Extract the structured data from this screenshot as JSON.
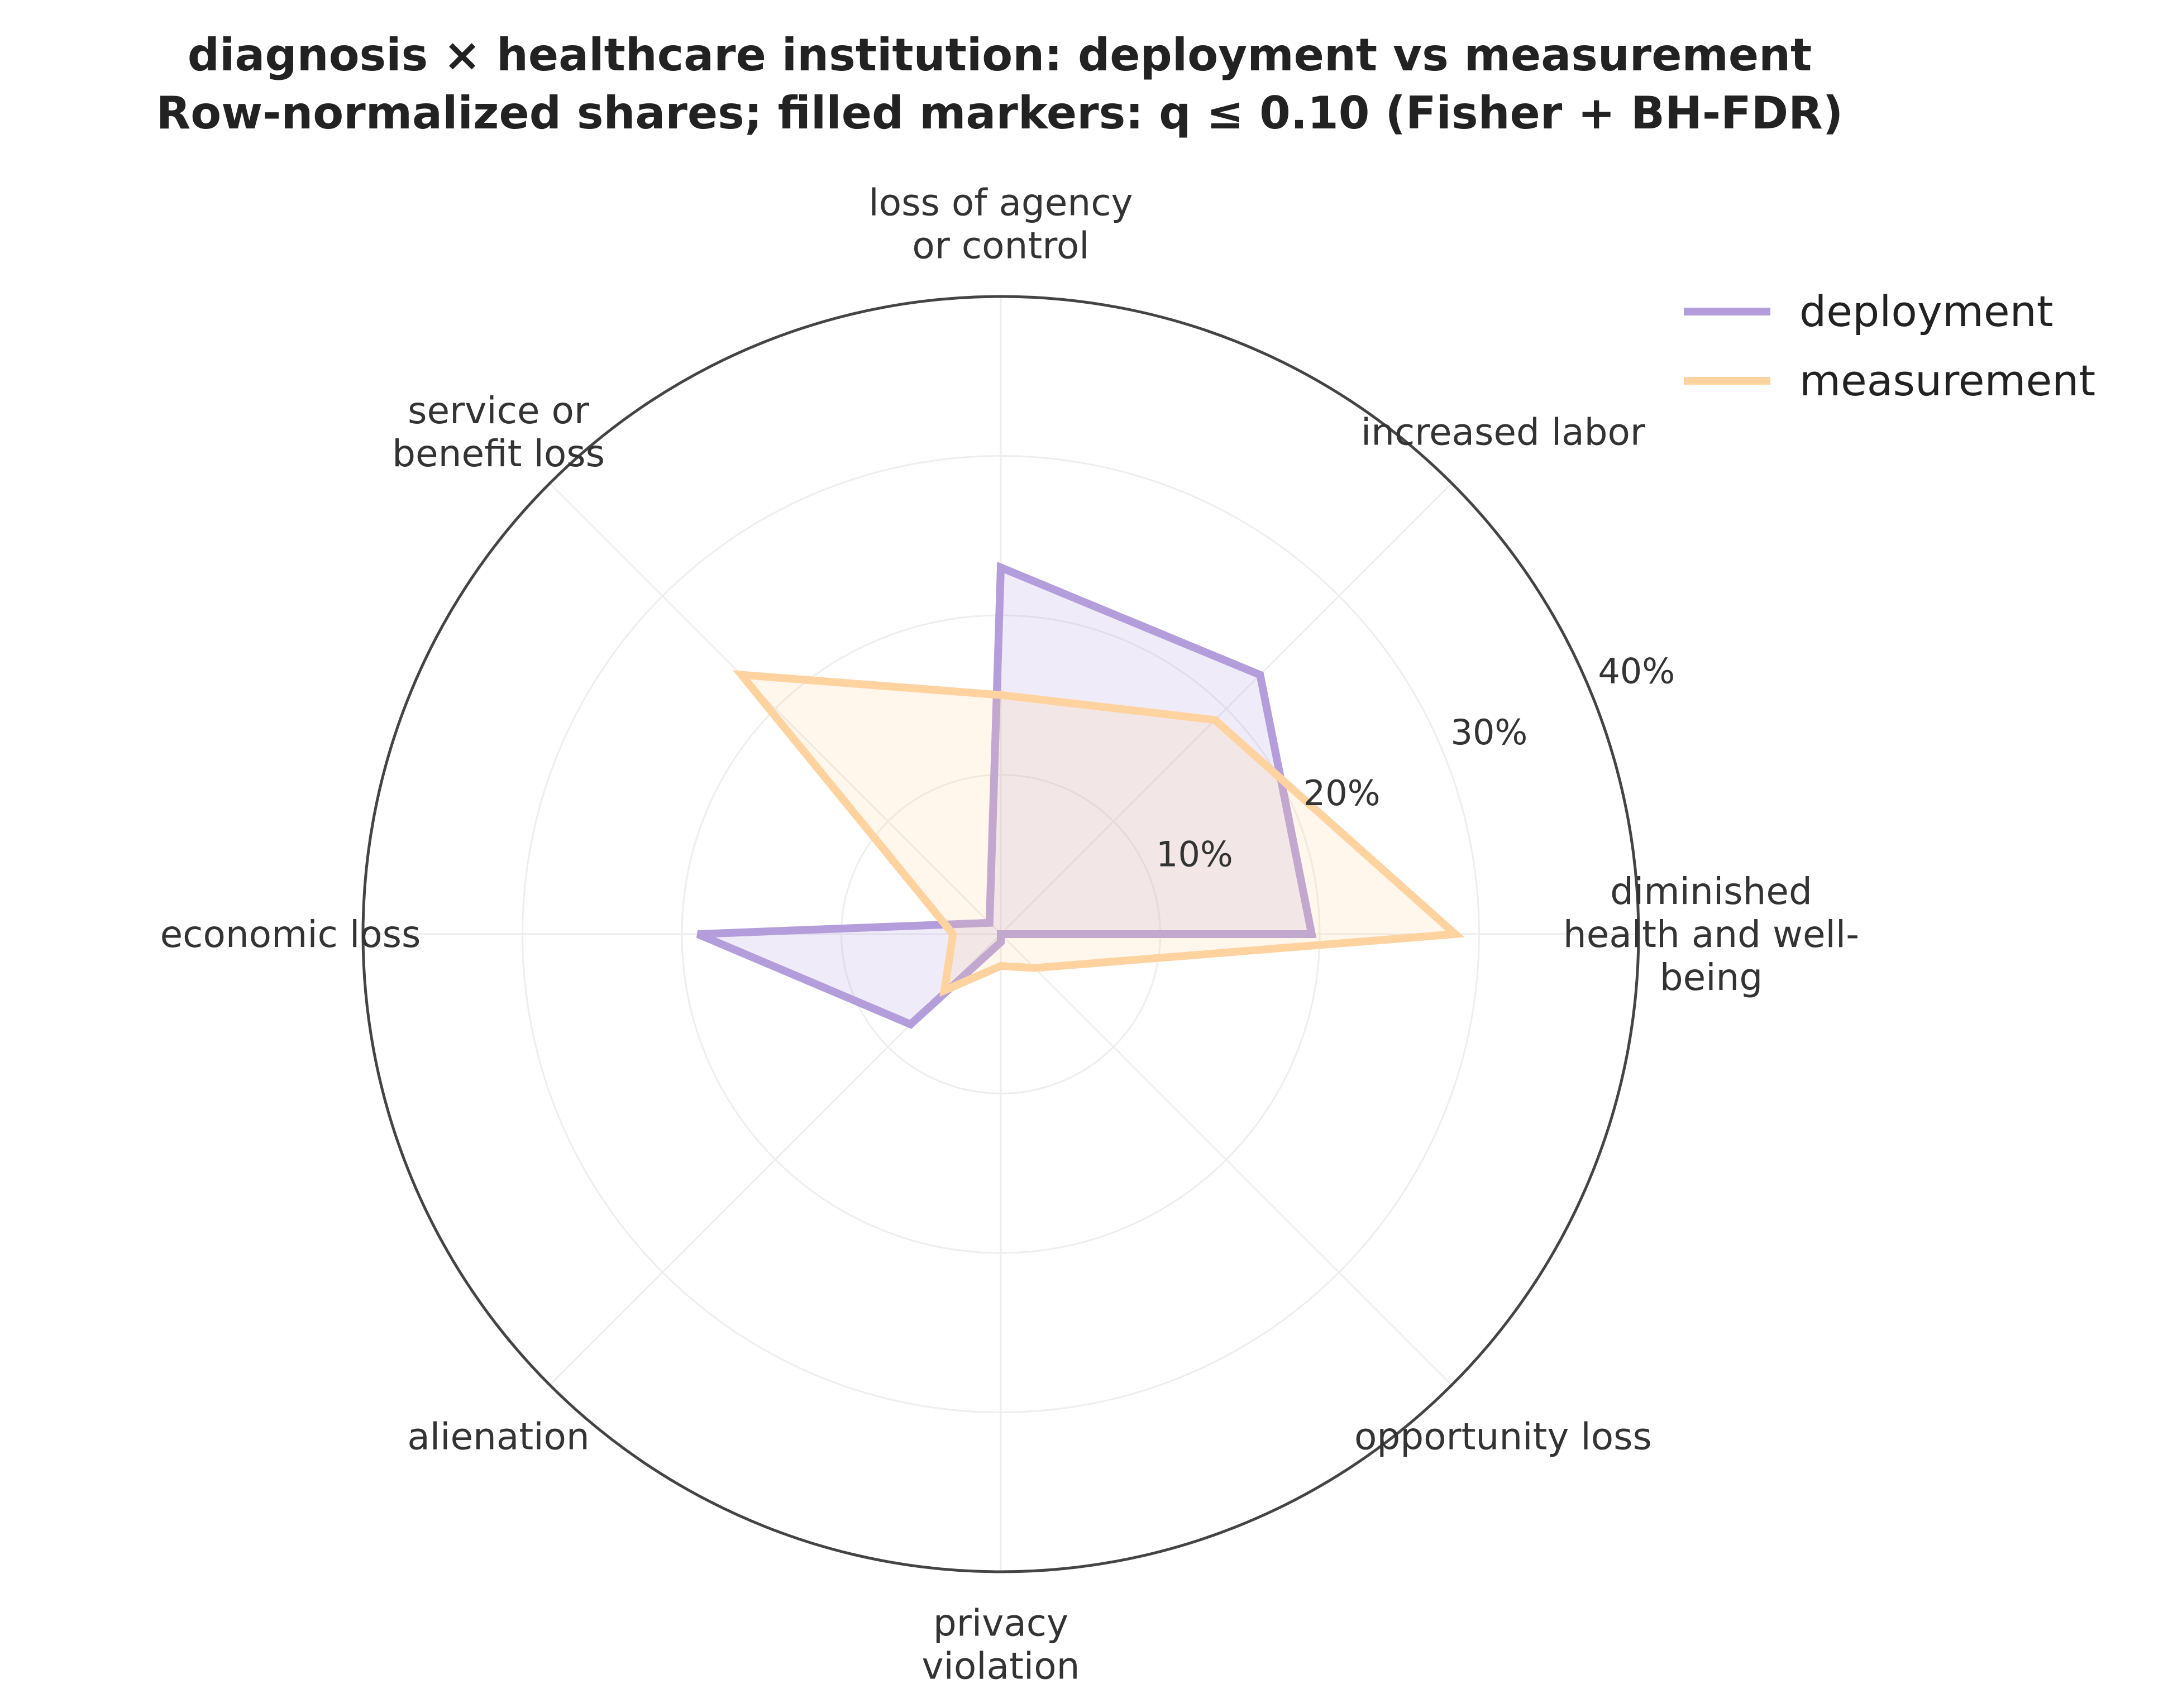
{
  "chart_data": {
    "type": "radar",
    "title": "diagnosis × healthcare institution: deployment vs measurement",
    "subtitle": "Row-normalized shares; filled markers: q ≤ 0.10 (Fisher + BH-FDR)",
    "categories": [
      [
        "diminished",
        "health and well-",
        "being"
      ],
      [
        "increased labor"
      ],
      [
        "loss of agency",
        "or control"
      ],
      [
        "service or",
        "benefit loss"
      ],
      [
        "economic loss"
      ],
      [
        "alienation"
      ],
      [
        "privacy",
        "violation"
      ],
      [
        "opportunity loss"
      ]
    ],
    "r_ticks": [
      10,
      20,
      30,
      40
    ],
    "r_tick_labels": [
      "10%",
      "20%",
      "30%",
      "40%"
    ],
    "rlim": [
      0,
      40
    ],
    "grid": true,
    "legend_position": "top-right",
    "series": [
      {
        "name": "deployment",
        "color": "#b39ddb",
        "values": [
          19.5,
          23.0,
          23.0,
          1.0,
          19.0,
          8.0,
          0.5,
          0.0
        ]
      },
      {
        "name": "measurement",
        "color": "#ffd3a0",
        "values": [
          28.5,
          19.0,
          15.0,
          23.0,
          3.0,
          5.0,
          2.0,
          3.0
        ]
      }
    ]
  }
}
